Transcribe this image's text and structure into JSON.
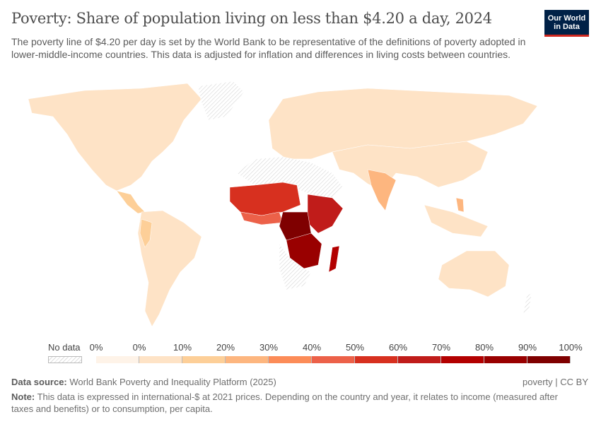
{
  "header": {
    "title": "Poverty: Share of population living on less than $4.20 a day, 2024",
    "subtitle": "The poverty line of $4.20 per day is set by the World Bank to be representative of the definitions of poverty adopted in lower-middle-income countries. This data is adjusted for inflation and differences in living costs between countries.",
    "logo_line1": "Our World",
    "logo_line2": "in Data"
  },
  "legend": {
    "no_data_label": "No data",
    "ticks": [
      "0%",
      "0%",
      "10%",
      "20%",
      "30%",
      "40%",
      "50%",
      "60%",
      "70%",
      "80%",
      "90%",
      "100%"
    ],
    "bin_colors": [
      "#fef3e8",
      "#fee3c6",
      "#fdcf98",
      "#fdb67f",
      "#fc8c58",
      "#ec6149",
      "#d7301f",
      "#c01c1a",
      "#b30000",
      "#990000",
      "#7f0000"
    ]
  },
  "footer": {
    "source_label": "Data source:",
    "source_text": "World Bank Poverty and Inequality Platform (2025)",
    "license": "poverty | CC BY",
    "note_label": "Note:",
    "note_text": "This data is expressed in international-$ at 2021 prices. Depending on the country and year, it relates to income (measured after taxes and benefits) or to consumption, per capita."
  }
}
